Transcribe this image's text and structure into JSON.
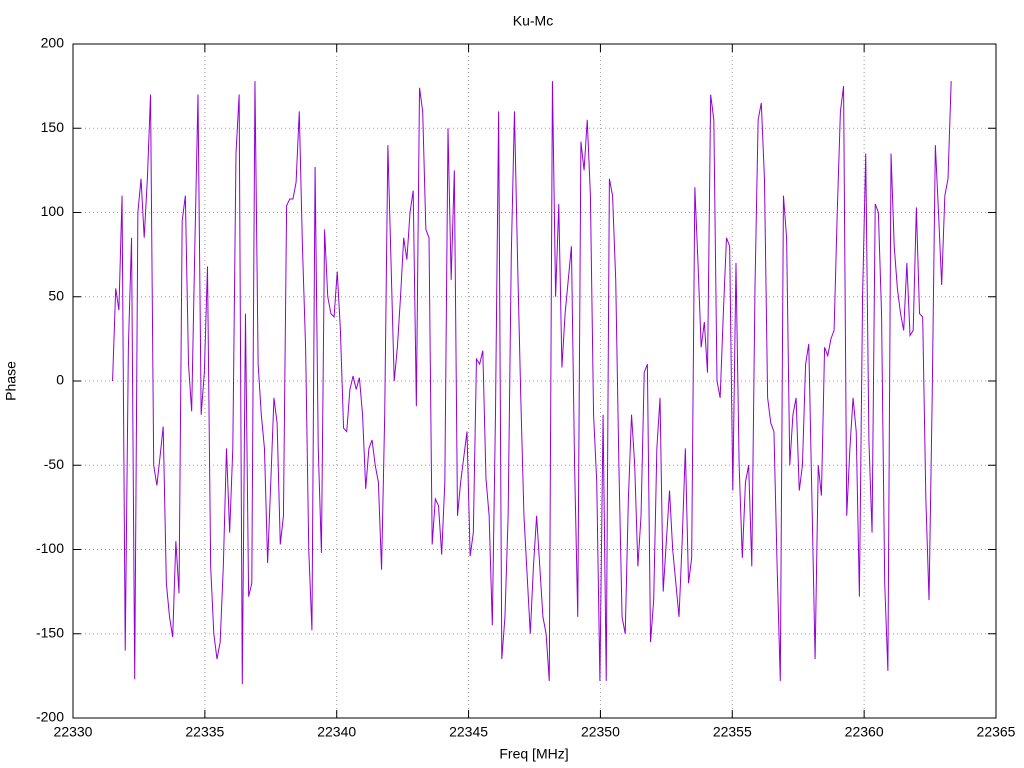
{
  "chart_data": {
    "type": "line",
    "title": "Ku-Mc",
    "x_label": "Freq [MHz]",
    "y_label": "Phase",
    "xlim": [
      22330,
      22365
    ],
    "xticks": [
      22330,
      22335,
      22340,
      22345,
      22350,
      22355,
      22360,
      22365
    ],
    "ylim": [
      -200,
      200
    ],
    "yticks": [
      -200,
      -150,
      -100,
      -50,
      0,
      50,
      100,
      150,
      200
    ],
    "grid": true,
    "series": [
      {
        "color": "#9400d3",
        "x": [
          22331.5,
          22331.62,
          22331.74,
          22331.86,
          22331.98,
          22332.1,
          22332.22,
          22332.34,
          22332.46,
          22332.58,
          22332.7,
          22332.82,
          22332.94,
          22333.06,
          22333.18,
          22333.3,
          22333.42,
          22333.54,
          22333.66,
          22333.78,
          22333.9,
          22334.02,
          22334.14,
          22334.26,
          22334.38,
          22334.5,
          22334.62,
          22334.74,
          22334.86,
          22334.98,
          22335.1,
          22335.22,
          22335.34,
          22335.46,
          22335.58,
          22335.7,
          22335.82,
          22335.94,
          22336.06,
          22336.18,
          22336.3,
          22336.42,
          22336.54,
          22336.66,
          22336.78,
          22336.9,
          22337.02,
          22337.14,
          22337.26,
          22337.38,
          22337.5,
          22337.62,
          22337.74,
          22337.86,
          22337.98,
          22338.1,
          22338.22,
          22338.34,
          22338.46,
          22338.58,
          22338.7,
          22338.82,
          22338.94,
          22339.06,
          22339.18,
          22339.3,
          22339.42,
          22339.54,
          22339.66,
          22339.78,
          22339.9,
          22340.02,
          22340.14,
          22340.26,
          22340.38,
          22340.5,
          22340.62,
          22340.74,
          22340.86,
          22340.98,
          22341.1,
          22341.22,
          22341.34,
          22341.46,
          22341.58,
          22341.7,
          22341.82,
          22341.94,
          22342.06,
          22342.18,
          22342.3,
          22342.42,
          22342.54,
          22342.66,
          22342.78,
          22342.9,
          22343.02,
          22343.14,
          22343.26,
          22343.38,
          22343.5,
          22343.62,
          22343.74,
          22343.86,
          22343.98,
          22344.1,
          22344.22,
          22344.34,
          22344.46,
          22344.58,
          22344.7,
          22344.82,
          22344.94,
          22345.06,
          22345.18,
          22345.3,
          22345.42,
          22345.54,
          22345.66,
          22345.78,
          22345.9,
          22346.02,
          22346.14,
          22346.26,
          22346.38,
          22346.5,
          22346.62,
          22346.74,
          22346.86,
          22346.98,
          22347.1,
          22347.22,
          22347.34,
          22347.46,
          22347.58,
          22347.7,
          22347.82,
          22347.94,
          22348.06,
          22348.18,
          22348.3,
          22348.42,
          22348.54,
          22348.66,
          22348.78,
          22348.9,
          22349.02,
          22349.14,
          22349.26,
          22349.38,
          22349.5,
          22349.62,
          22349.74,
          22349.86,
          22349.98,
          22350.1,
          22350.22,
          22350.34,
          22350.46,
          22350.58,
          22350.7,
          22350.82,
          22350.94,
          22351.06,
          22351.18,
          22351.3,
          22351.42,
          22351.54,
          22351.66,
          22351.78,
          22351.9,
          22352.02,
          22352.14,
          22352.26,
          22352.38,
          22352.5,
          22352.62,
          22352.74,
          22352.86,
          22352.98,
          22353.1,
          22353.22,
          22353.34,
          22353.46,
          22353.58,
          22353.7,
          22353.82,
          22353.94,
          22354.06,
          22354.18,
          22354.3,
          22354.42,
          22354.54,
          22354.66,
          22354.78,
          22354.9,
          22355.02,
          22355.14,
          22355.26,
          22355.38,
          22355.5,
          22355.62,
          22355.74,
          22355.86,
          22355.98,
          22356.1,
          22356.22,
          22356.34,
          22356.46,
          22356.58,
          22356.7,
          22356.82,
          22356.94,
          22357.06,
          22357.18,
          22357.3,
          22357.42,
          22357.54,
          22357.66,
          22357.78,
          22357.9,
          22358.02,
          22358.14,
          22358.26,
          22358.38,
          22358.5,
          22358.62,
          22358.74,
          22358.86,
          22358.98,
          22359.1,
          22359.22,
          22359.34,
          22359.46,
          22359.58,
          22359.7,
          22359.82,
          22359.94,
          22360.06,
          22360.18,
          22360.3,
          22360.42,
          22360.54,
          22360.66,
          22360.78,
          22360.9,
          22361.02,
          22361.14,
          22361.26,
          22361.38,
          22361.5,
          22361.62,
          22361.74,
          22361.86,
          22361.98,
          22362.1,
          22362.22,
          22362.34,
          22362.46,
          22362.58,
          22362.7,
          22362.82,
          22362.94,
          22363.06,
          22363.18,
          22363.3
        ],
        "values": [
          0,
          55,
          42,
          110,
          -160,
          20,
          85,
          -177,
          100,
          120,
          85,
          120,
          170,
          -50,
          -62,
          -45,
          -27,
          -120,
          -140,
          -152,
          -95,
          -126,
          95,
          110,
          10,
          -18,
          80,
          170,
          -20,
          5,
          68,
          -110,
          -150,
          -165,
          -155,
          -110,
          -40,
          -90,
          -40,
          135,
          170,
          -180,
          40,
          -128,
          -120,
          178,
          10,
          -20,
          -40,
          -108,
          -60,
          -10,
          -25,
          -97,
          -80,
          104,
          108,
          108,
          118,
          160,
          80,
          20,
          -100,
          -148,
          127,
          -40,
          -102,
          90,
          50,
          40,
          38,
          65,
          30,
          -28,
          -30,
          -5,
          3,
          -5,
          2,
          -20,
          -64,
          -40,
          -35,
          -50,
          -60,
          -112,
          -20,
          140,
          70,
          0,
          20,
          50,
          85,
          72,
          100,
          113,
          -15,
          174,
          160,
          90,
          85,
          -97,
          -70,
          -74,
          -103,
          -60,
          150,
          60,
          125,
          -80,
          -60,
          -45,
          -30,
          -104,
          -90,
          13,
          10,
          18,
          -58,
          -80,
          -145,
          -20,
          160,
          -165,
          -140,
          -80,
          75,
          160,
          70,
          -10,
          -80,
          -115,
          -150,
          -110,
          -80,
          -110,
          -140,
          -150,
          -178,
          178,
          50,
          105,
          8,
          40,
          60,
          80,
          -50,
          -140,
          142,
          125,
          155,
          110,
          -20,
          -60,
          -178,
          -20,
          -178,
          120,
          110,
          60,
          -50,
          -140,
          -150,
          -70,
          -20,
          -50,
          -110,
          -80,
          5,
          10,
          -155,
          -130,
          -40,
          -10,
          -125,
          -95,
          -65,
          -100,
          -120,
          -140,
          -95,
          -40,
          -120,
          -105,
          115,
          70,
          20,
          35,
          5,
          170,
          155,
          0,
          -10,
          40,
          85,
          80,
          -65,
          70,
          -50,
          -105,
          -60,
          -50,
          -110,
          55,
          155,
          165,
          120,
          -10,
          -25,
          -30,
          -110,
          -178,
          110,
          85,
          -50,
          -20,
          -10,
          -65,
          -50,
          10,
          22,
          -70,
          -165,
          -50,
          -68,
          20,
          15,
          25,
          30,
          100,
          160,
          175,
          -80,
          -40,
          -10,
          -30,
          -128,
          50,
          135,
          -35,
          -90,
          105,
          100,
          40,
          -120,
          -172,
          135,
          80,
          55,
          40,
          30,
          70,
          27,
          30,
          103,
          40,
          38,
          -70,
          -130,
          -10,
          140,
          100,
          57,
          110,
          120,
          178
        ]
      }
    ]
  }
}
